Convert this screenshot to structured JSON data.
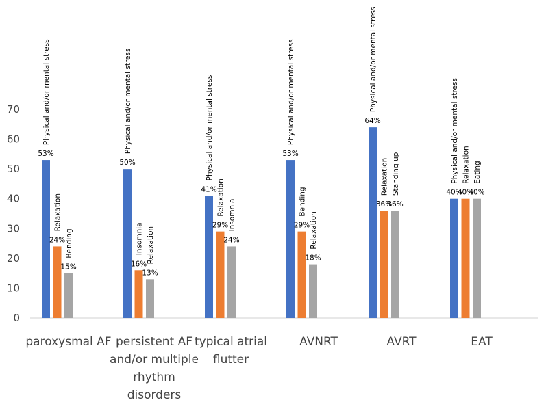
{
  "chart_data": {
    "type": "bar",
    "ylim": [
      0,
      70
    ],
    "yticks": [
      "0",
      "10",
      "20",
      "30",
      "40",
      "50",
      "60",
      "70"
    ],
    "grid": false,
    "colors": [
      "#4472C4",
      "#ED7D31",
      "#A5A5A5"
    ],
    "groups": [
      {
        "category": "paroxysmal AF",
        "category_lines": [
          "paroxysmal AF"
        ],
        "bars": [
          {
            "label": "Physical and/or mental stress",
            "value": 53,
            "value_label": "53%"
          },
          {
            "label": "Relaxation",
            "value": 24,
            "value_label": "24%"
          },
          {
            "label": "Bending",
            "value": 15,
            "value_label": "15%"
          }
        ]
      },
      {
        "category": "persistent AF and/or multiple rhythm disorders",
        "category_lines": [
          "persistent AF",
          "and/or multiple",
          "rhythm",
          "disorders"
        ],
        "bars": [
          {
            "label": "Physical and/or mental stress",
            "value": 50,
            "value_label": "50%"
          },
          {
            "label": "Insomnia",
            "value": 16,
            "value_label": "16%"
          },
          {
            "label": "Relaxation",
            "value": 13,
            "value_label": "13%"
          }
        ]
      },
      {
        "category": "typical atrial flutter",
        "category_lines": [
          "typical atrial",
          "flutter"
        ],
        "bars": [
          {
            "label": "Physical and/or mental stress",
            "value": 41,
            "value_label": "41%"
          },
          {
            "label": "Relaxation",
            "value": 29,
            "value_label": "29%"
          },
          {
            "label": "Insomnia",
            "value": 24,
            "value_label": "24%"
          }
        ]
      },
      {
        "category": "AVNRT",
        "category_lines": [
          "AVNRT"
        ],
        "bars": [
          {
            "label": "Physical and/or mental stress",
            "value": 53,
            "value_label": "53%"
          },
          {
            "label": "Bending",
            "value": 29,
            "value_label": "29%"
          },
          {
            "label": "Relaxation",
            "value": 18,
            "value_label": "18%"
          }
        ]
      },
      {
        "category": "AVRT",
        "category_lines": [
          "AVRT"
        ],
        "bars": [
          {
            "label": "Physical and/or mental stress",
            "value": 64,
            "value_label": "64%"
          },
          {
            "label": "Relaxation",
            "value": 36,
            "value_label": "36%"
          },
          {
            "label": "Standing up",
            "value": 36,
            "value_label": "36%"
          }
        ]
      },
      {
        "category": "EAT",
        "category_lines": [
          "EAT"
        ],
        "bars": [
          {
            "label": "Physical and/or mental stress",
            "value": 40,
            "value_label": "40%"
          },
          {
            "label": "Relaxation",
            "value": 40,
            "value_label": "40%"
          },
          {
            "label": "Eating",
            "value": 40,
            "value_label": "40%"
          }
        ]
      }
    ]
  }
}
